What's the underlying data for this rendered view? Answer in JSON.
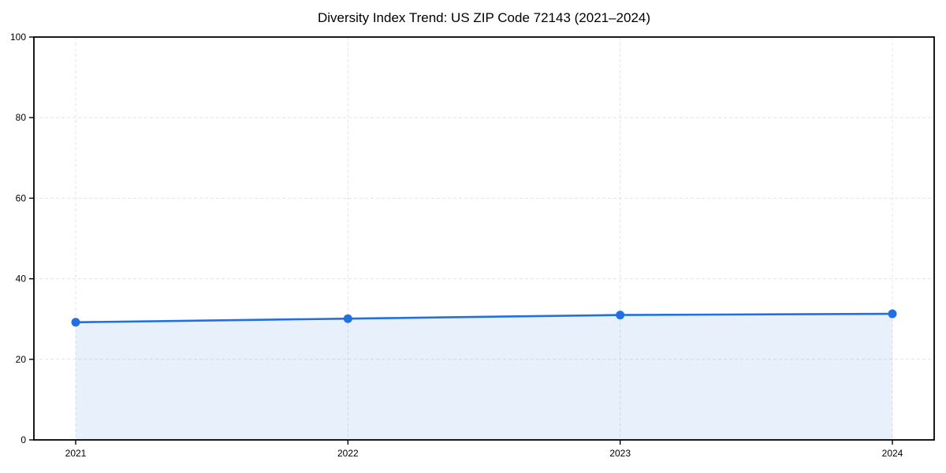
{
  "chart_data": {
    "type": "area",
    "title": "Diversity Index Trend: US ZIP Code 72143 (2021–2024)",
    "categories": [
      "2021",
      "2022",
      "2023",
      "2024"
    ],
    "series": [
      {
        "name": "Diversity Index",
        "values": [
          29.2,
          30.1,
          31.0,
          31.3
        ]
      }
    ],
    "xlabel": "",
    "ylabel": "",
    "ylim": [
      0,
      100
    ],
    "yticks": [
      0,
      20,
      40,
      60,
      80,
      100
    ],
    "grid": "dashed-both-axes",
    "legend": "none",
    "marker": "circle",
    "colors": {
      "line": "#2170e0",
      "marker": "#2170e0",
      "fill": "#2170e0",
      "fill_opacity": 0.1,
      "grid": "#e4e4e4",
      "axis": "#000000",
      "text": "#000000",
      "background": "#ffffff"
    }
  }
}
